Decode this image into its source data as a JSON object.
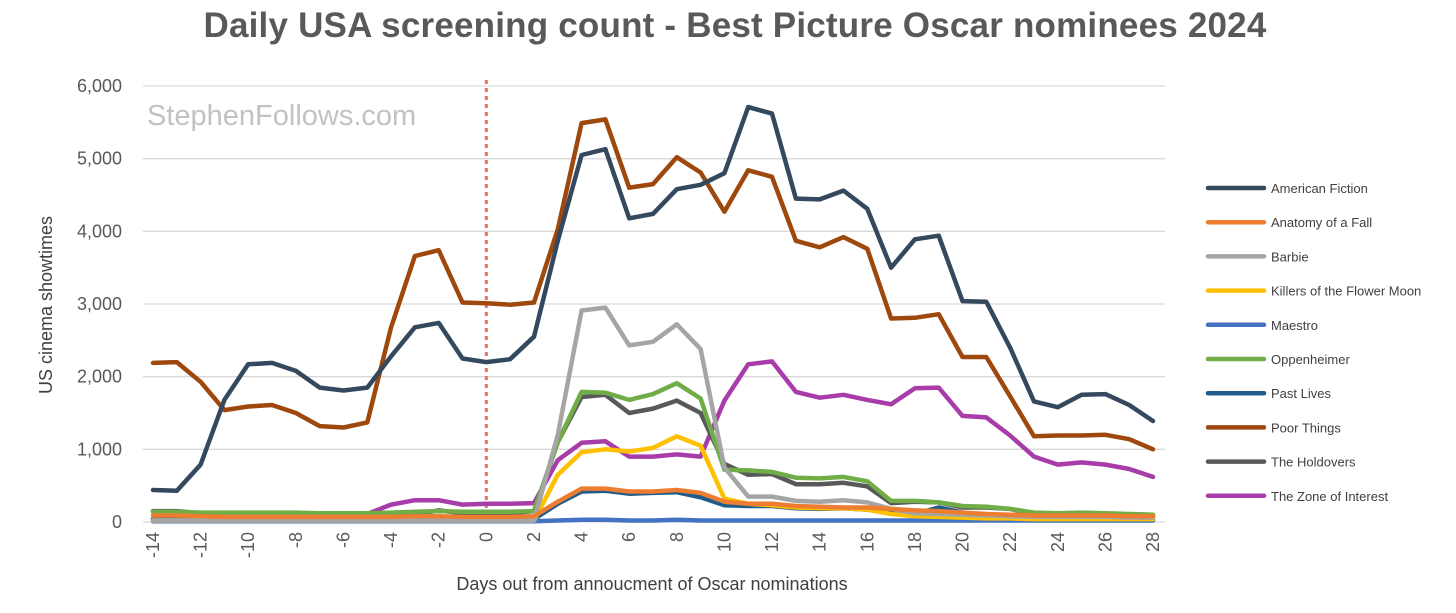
{
  "watermark": "StephenFollows.com",
  "chart_data": {
    "type": "line",
    "title": "Daily USA screening count - Best Picture Oscar nominees 2024",
    "xlabel": "Days out from annoucment of Oscar nominations",
    "ylabel": "US cinema showtimes",
    "xlim": [
      -14,
      28
    ],
    "ylim": [
      0,
      6000
    ],
    "yticks": [
      0,
      1000,
      2000,
      3000,
      4000,
      5000,
      6000
    ],
    "ytick_labels": [
      "0",
      "1,000",
      "2,000",
      "3,000",
      "4,000",
      "5,000",
      "6,000"
    ],
    "xticks": [
      -14,
      -12,
      -10,
      -8,
      -6,
      -4,
      -2,
      0,
      2,
      4,
      6,
      8,
      10,
      12,
      14,
      16,
      18,
      20,
      22,
      24,
      26,
      28
    ],
    "xtick_labels": [
      "-14",
      "-12",
      "-10",
      "-8",
      "-6",
      "-4",
      "-2",
      "0",
      "2",
      "4",
      "6",
      "8",
      "10",
      "12",
      "14",
      "16",
      "18",
      "20",
      "22",
      "24",
      "26",
      "28"
    ],
    "grid": "horizontal",
    "reference_line_x": 0,
    "reference_line_color": "#e8736c",
    "legend_position": "right",
    "x": [
      -14,
      -13,
      -12,
      -11,
      -10,
      -9,
      -8,
      -7,
      -6,
      -5,
      -4,
      -3,
      -2,
      -1,
      0,
      1,
      2,
      3,
      4,
      5,
      6,
      7,
      8,
      9,
      10,
      11,
      12,
      13,
      14,
      15,
      16,
      17,
      18,
      19,
      20,
      21,
      22,
      23,
      24,
      25,
      26,
      27,
      28
    ],
    "series": [
      {
        "name": "American Fiction",
        "color": "#34495e",
        "values": [
          440,
          430,
          790,
          1680,
          2170,
          2190,
          2080,
          1850,
          1810,
          1850,
          2280,
          2680,
          2740,
          2250,
          2200,
          2240,
          2550,
          3870,
          5050,
          5130,
          4180,
          4240,
          4580,
          4640,
          4800,
          5710,
          5620,
          4450,
          4440,
          4560,
          4310,
          3500,
          3890,
          3940,
          3040,
          3030,
          2400,
          1660,
          1580,
          1750,
          1760,
          1610,
          1390
        ]
      },
      {
        "name": "Anatomy of a Fall",
        "color": "#ed7d31",
        "values": [
          90,
          90,
          80,
          70,
          70,
          70,
          70,
          70,
          70,
          70,
          70,
          80,
          80,
          70,
          70,
          70,
          80,
          280,
          460,
          460,
          420,
          420,
          440,
          400,
          280,
          250,
          250,
          220,
          210,
          200,
          200,
          180,
          160,
          150,
          130,
          110,
          100,
          90,
          90,
          90,
          90,
          80,
          80
        ]
      },
      {
        "name": "Barbie",
        "color": "#a5a5a5",
        "values": [
          20,
          20,
          20,
          20,
          20,
          20,
          20,
          20,
          20,
          20,
          20,
          20,
          20,
          20,
          20,
          20,
          20,
          1200,
          2910,
          2950,
          2430,
          2480,
          2720,
          2380,
          750,
          350,
          350,
          290,
          280,
          300,
          270,
          180,
          120,
          110,
          100,
          90,
          80,
          70,
          70,
          70,
          70,
          60,
          60
        ]
      },
      {
        "name": "Killers of the Flower Moon",
        "color": "#ffc000",
        "values": [
          20,
          20,
          20,
          20,
          20,
          20,
          20,
          20,
          20,
          20,
          20,
          20,
          20,
          20,
          20,
          20,
          20,
          650,
          960,
          1000,
          970,
          1020,
          1180,
          1050,
          320,
          250,
          230,
          200,
          190,
          190,
          170,
          110,
          80,
          70,
          60,
          50,
          50,
          40,
          40,
          40,
          40,
          40,
          40
        ]
      },
      {
        "name": "Maestro",
        "color": "#4472c4",
        "values": [
          10,
          10,
          10,
          10,
          10,
          10,
          10,
          10,
          10,
          10,
          10,
          10,
          10,
          10,
          10,
          10,
          10,
          20,
          30,
          30,
          20,
          20,
          30,
          20,
          20,
          20,
          20,
          20,
          20,
          20,
          20,
          20,
          20,
          20,
          20,
          20,
          20,
          20,
          20,
          20,
          20,
          20,
          20
        ]
      },
      {
        "name": "Oppenheimer",
        "color": "#70ad47",
        "values": [
          140,
          140,
          130,
          130,
          130,
          130,
          130,
          120,
          120,
          120,
          130,
          140,
          150,
          140,
          140,
          140,
          150,
          1100,
          1790,
          1780,
          1680,
          1760,
          1910,
          1700,
          720,
          710,
          690,
          610,
          600,
          620,
          560,
          290,
          290,
          270,
          220,
          210,
          180,
          130,
          120,
          130,
          120,
          110,
          100
        ]
      },
      {
        "name": "Past Lives",
        "color": "#1f5c8b",
        "values": [
          40,
          40,
          40,
          30,
          30,
          30,
          30,
          30,
          30,
          30,
          30,
          30,
          30,
          30,
          30,
          30,
          40,
          250,
          420,
          430,
          390,
          400,
          410,
          340,
          230,
          220,
          220,
          190,
          180,
          190,
          170,
          130,
          110,
          200,
          130,
          90,
          70,
          60,
          60,
          60,
          60,
          50,
          40
        ]
      },
      {
        "name": "Poor Things",
        "color": "#9e480e",
        "values": [
          2190,
          2200,
          1930,
          1540,
          1590,
          1610,
          1500,
          1320,
          1300,
          1370,
          2680,
          3660,
          3740,
          3020,
          3010,
          2990,
          3020,
          4030,
          5490,
          5540,
          4600,
          4650,
          5020,
          4810,
          4270,
          4840,
          4750,
          3870,
          3780,
          3920,
          3760,
          2800,
          2810,
          2860,
          2270,
          2270,
          1730,
          1180,
          1190,
          1190,
          1200,
          1140,
          1000
        ]
      },
      {
        "name": "The Holdovers",
        "color": "#595959",
        "values": [
          150,
          150,
          120,
          70,
          70,
          70,
          70,
          70,
          60,
          60,
          80,
          100,
          160,
          120,
          110,
          120,
          150,
          1100,
          1720,
          1750,
          1500,
          1560,
          1670,
          1500,
          800,
          650,
          660,
          520,
          520,
          540,
          490,
          260,
          280,
          270,
          200,
          200,
          180,
          110,
          100,
          110,
          100,
          100,
          90
        ]
      },
      {
        "name": "The Zone of Interest",
        "color": "#a83ca8",
        "values": [
          40,
          40,
          40,
          110,
          120,
          120,
          120,
          110,
          110,
          110,
          240,
          300,
          300,
          240,
          250,
          250,
          260,
          850,
          1090,
          1110,
          900,
          900,
          930,
          900,
          1670,
          2170,
          2210,
          1790,
          1710,
          1750,
          1680,
          1620,
          1840,
          1850,
          1460,
          1440,
          1190,
          900,
          790,
          820,
          790,
          730,
          620
        ]
      }
    ]
  }
}
